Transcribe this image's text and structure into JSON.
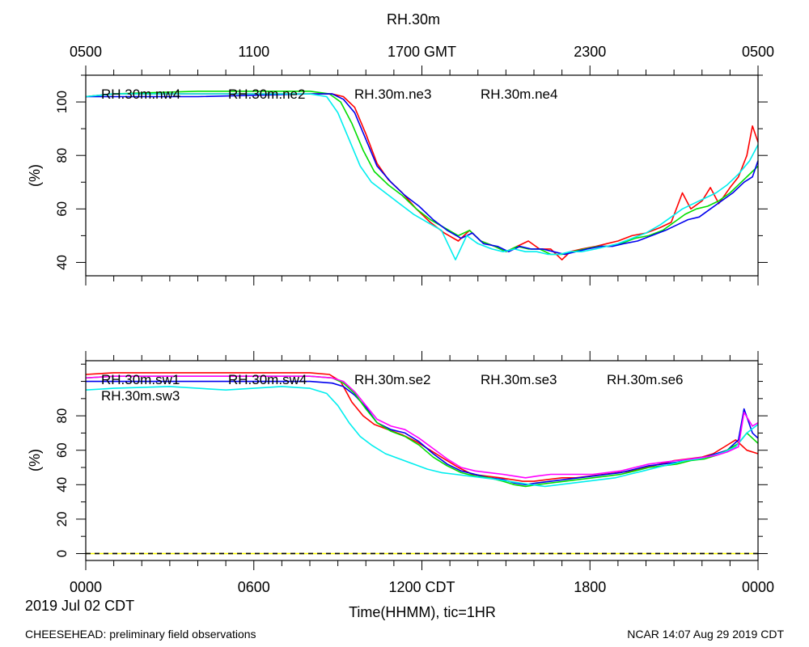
{
  "title": "RH.30m",
  "top_axis": {
    "ticks": [
      {
        "hours": 0,
        "label": "0500"
      },
      {
        "hours": 6,
        "label": "1100"
      },
      {
        "hours": 12,
        "label": "1700 GMT"
      },
      {
        "hours": 18,
        "label": "2300"
      },
      {
        "hours": 24,
        "label": "0500"
      }
    ]
  },
  "bottom_axis": {
    "ticks": [
      {
        "hours": 0,
        "label": "0000"
      },
      {
        "hours": 6,
        "label": "0600"
      },
      {
        "hours": 12,
        "label": "1200 CDT"
      },
      {
        "hours": 18,
        "label": "1800"
      },
      {
        "hours": 24,
        "label": "0000"
      }
    ],
    "xlabel": "Time(HHMM), tic=1HR"
  },
  "date_label": "2019 Jul 02 CDT",
  "footer": {
    "left": "CHEESEHEAD: preliminary field observations",
    "right": "NCAR 14:07 Aug 29 2019 CDT"
  },
  "chart_data": [
    {
      "type": "line",
      "ylabel": "(%)",
      "xlim": [
        0,
        24
      ],
      "ylim": [
        35,
        110
      ],
      "yticks": [
        40,
        60,
        80,
        100
      ],
      "series": [
        {
          "name": "RH.30m.nw4",
          "color": "#ff0000",
          "x": [
            0,
            1,
            4,
            8,
            8.8,
            9.2,
            9.6,
            10.0,
            10.4,
            10.8,
            11.3,
            11.8,
            12.3,
            12.8,
            13.3,
            13.7,
            14.1,
            14.6,
            15.0,
            15.4,
            15.8,
            16.2,
            16.6,
            17.0,
            17.3,
            17.7,
            18.2,
            18.6,
            19.0,
            19.5,
            20.0,
            20.5,
            20.9,
            21.3,
            21.6,
            22.0,
            22.3,
            22.6,
            23.0,
            23.3,
            23.6,
            23.8,
            24.0
          ],
          "values": [
            102,
            103,
            103,
            103,
            103,
            102,
            98,
            88,
            77,
            71,
            66,
            60,
            55,
            51,
            48,
            52,
            48,
            46,
            44,
            46,
            48,
            45,
            45,
            41,
            44,
            45,
            46,
            47,
            48,
            50,
            51,
            53,
            55,
            66,
            60,
            63,
            68,
            62,
            68,
            72,
            80,
            91,
            85
          ]
        },
        {
          "name": "RH.30m.ne2",
          "color": "#00dd00",
          "x": [
            0,
            1,
            4,
            8,
            8.7,
            9.1,
            9.5,
            9.9,
            10.3,
            10.8,
            11.3,
            11.8,
            12.3,
            12.8,
            13.3,
            13.7,
            14.1,
            14.6,
            15.0,
            15.4,
            15.8,
            16.2,
            16.6,
            17.0,
            17.4,
            17.8,
            18.3,
            18.7,
            19.1,
            19.6,
            20.1,
            20.6,
            21.0,
            21.4,
            21.8,
            22.2,
            22.6,
            23.0,
            23.4,
            23.8,
            24.0
          ],
          "values": [
            102,
            103,
            104,
            104,
            103,
            100,
            92,
            82,
            74,
            69,
            65,
            60,
            56,
            53,
            50,
            52,
            48,
            46,
            44,
            46,
            45,
            45,
            43,
            43,
            44,
            45,
            46,
            46,
            47,
            49,
            50,
            52,
            55,
            58,
            60,
            61,
            63,
            66,
            70,
            74,
            76
          ]
        },
        {
          "name": "RH.30m.ne3",
          "color": "#0000ee",
          "x": [
            0,
            1,
            4,
            8,
            8.8,
            9.2,
            9.6,
            10.0,
            10.4,
            10.9,
            11.4,
            11.9,
            12.4,
            12.9,
            13.4,
            13.8,
            14.2,
            14.7,
            15.1,
            15.5,
            15.9,
            16.3,
            16.7,
            17.1,
            17.5,
            17.9,
            18.4,
            18.8,
            19.2,
            19.7,
            20.2,
            20.7,
            21.1,
            21.5,
            21.9,
            22.3,
            22.7,
            23.1,
            23.5,
            23.8,
            24.0
          ],
          "values": [
            102,
            102,
            102,
            103,
            103,
            101,
            96,
            86,
            76,
            70,
            65,
            61,
            56,
            52,
            49,
            51,
            47,
            46,
            44,
            46,
            45,
            45,
            44,
            43,
            44,
            45,
            46,
            46,
            47,
            48,
            50,
            52,
            54,
            56,
            57,
            60,
            63,
            66,
            70,
            72,
            78
          ]
        },
        {
          "name": "RH.30m.ne4",
          "color": "#00eeee",
          "x": [
            0,
            1,
            4,
            8,
            8.6,
            9.0,
            9.4,
            9.8,
            10.2,
            10.7,
            11.2,
            11.7,
            12.2,
            12.7,
            13.2,
            13.6,
            14.0,
            14.5,
            14.9,
            15.3,
            15.7,
            16.1,
            16.5,
            16.9,
            17.3,
            17.7,
            18.2,
            18.6,
            19.0,
            19.5,
            20.0,
            20.5,
            20.9,
            21.3,
            21.7,
            22.1,
            22.5,
            22.9,
            23.3,
            23.7,
            24.0
          ],
          "values": [
            102,
            103,
            103,
            103,
            102,
            96,
            86,
            76,
            70,
            66,
            62,
            58,
            55,
            52,
            41,
            50,
            47,
            45,
            44,
            45,
            44,
            44,
            43,
            43,
            44,
            44,
            45,
            46,
            47,
            49,
            51,
            54,
            57,
            60,
            62,
            64,
            66,
            69,
            73,
            78,
            84
          ]
        }
      ]
    },
    {
      "type": "line",
      "ylabel": "(%)",
      "xlim": [
        0,
        24
      ],
      "ylim": [
        -4,
        112
      ],
      "yticks": [
        0,
        20,
        40,
        60,
        80
      ],
      "series": [
        {
          "name": "RH.30m.sw1",
          "color": "#ff0000",
          "x": [
            0,
            1,
            4,
            8,
            8.7,
            9.1,
            9.5,
            9.9,
            10.3,
            10.8,
            11.3,
            11.8,
            12.3,
            12.8,
            13.3,
            13.8,
            14.3,
            14.8,
            15.2,
            15.6,
            16.0,
            16.5,
            17.0,
            17.5,
            18.0,
            18.5,
            19.0,
            19.5,
            20.0,
            20.5,
            21.0,
            21.5,
            22.0,
            22.4,
            22.8,
            23.2,
            23.6,
            24.0
          ],
          "values": [
            104,
            105,
            105,
            105,
            104,
            100,
            88,
            80,
            75,
            72,
            69,
            65,
            60,
            55,
            50,
            46,
            45,
            44,
            43,
            42,
            42,
            43,
            44,
            44,
            45,
            46,
            47,
            48,
            50,
            52,
            54,
            55,
            56,
            58,
            62,
            66,
            60,
            58
          ]
        },
        {
          "name": "RH.30m.sw4",
          "color": "#0000ee",
          "x": [
            0,
            1,
            4,
            8,
            8.8,
            9.2,
            9.6,
            10.0,
            10.4,
            10.9,
            11.4,
            11.9,
            12.4,
            12.9,
            13.4,
            13.9,
            14.4,
            14.9,
            15.3,
            15.7,
            16.1,
            16.6,
            17.1,
            17.6,
            18.1,
            18.6,
            19.1,
            19.6,
            20.1,
            20.6,
            21.1,
            21.6,
            22.1,
            22.5,
            22.9,
            23.3,
            23.5,
            23.8,
            24.0
          ],
          "values": [
            100,
            100,
            100,
            100,
            99,
            97,
            92,
            85,
            76,
            72,
            70,
            65,
            58,
            52,
            48,
            46,
            44,
            43,
            41,
            40,
            41,
            42,
            43,
            44,
            45,
            46,
            47,
            49,
            51,
            52,
            53,
            55,
            56,
            58,
            60,
            66,
            84,
            70,
            67
          ]
        },
        {
          "name": "RH.30m.sw3",
          "color": "#00dd00",
          "x": [
            0,
            1,
            4,
            8,
            8.8,
            9.2,
            9.6,
            10.0,
            10.4,
            10.9,
            11.4,
            11.9,
            12.4,
            12.9,
            13.4,
            13.9,
            14.4,
            14.9,
            15.3,
            15.7,
            16.1,
            16.6,
            17.1,
            17.6,
            18.1,
            18.6,
            19.1,
            19.6,
            20.1,
            20.6,
            21.1,
            21.6,
            22.1,
            22.5,
            22.9,
            23.3,
            23.6,
            24.0
          ],
          "values": [
            102,
            103,
            103,
            103,
            102,
            99,
            93,
            84,
            76,
            71,
            68,
            63,
            56,
            51,
            47,
            45,
            44,
            42,
            40,
            39,
            40,
            41,
            42,
            43,
            44,
            45,
            46,
            48,
            50,
            51,
            52,
            54,
            55,
            57,
            60,
            64,
            70,
            64
          ]
        },
        {
          "name": "RH.30m.se2",
          "color": "#00eeee",
          "x": [
            0,
            1,
            3,
            5,
            7,
            8,
            8.6,
            9.0,
            9.4,
            9.8,
            10.2,
            10.7,
            11.2,
            11.7,
            12.2,
            12.7,
            13.2,
            13.7,
            14.2,
            14.7,
            15.1,
            15.5,
            15.9,
            16.4,
            16.9,
            17.4,
            17.9,
            18.4,
            18.9,
            19.4,
            19.9,
            20.4,
            20.9,
            21.4,
            21.9,
            22.4,
            22.8,
            23.2,
            23.6,
            24.0
          ],
          "values": [
            95,
            96,
            97,
            95,
            97,
            96,
            93,
            86,
            76,
            68,
            63,
            58,
            55,
            52,
            49,
            47,
            46,
            45,
            44,
            43,
            42,
            41,
            40,
            39,
            40,
            41,
            42,
            43,
            44,
            46,
            48,
            50,
            52,
            54,
            55,
            57,
            59,
            62,
            70,
            75
          ]
        },
        {
          "name": "RH.30m.se3",
          "color": "#ff00ff",
          "x": [
            0,
            1,
            4,
            8,
            8.8,
            9.2,
            9.6,
            10.0,
            10.4,
            10.9,
            11.4,
            11.9,
            12.4,
            12.9,
            13.4,
            13.9,
            14.4,
            14.9,
            15.3,
            15.7,
            16.1,
            16.6,
            17.1,
            17.6,
            18.1,
            18.6,
            19.1,
            19.6,
            20.1,
            20.6,
            21.1,
            21.6,
            22.1,
            22.5,
            22.9,
            23.3,
            23.5,
            23.8,
            24.0
          ],
          "values": [
            102,
            103,
            103,
            103,
            102,
            100,
            94,
            86,
            78,
            74,
            72,
            67,
            61,
            55,
            50,
            48,
            47,
            46,
            45,
            44,
            45,
            46,
            46,
            46,
            46,
            47,
            48,
            50,
            52,
            53,
            54,
            55,
            56,
            57,
            59,
            62,
            82,
            74,
            76
          ]
        },
        {
          "name": "RH.30m.se6",
          "color": "#ffff00",
          "x": [
            0,
            24
          ],
          "values": [
            0,
            0
          ]
        }
      ]
    }
  ]
}
